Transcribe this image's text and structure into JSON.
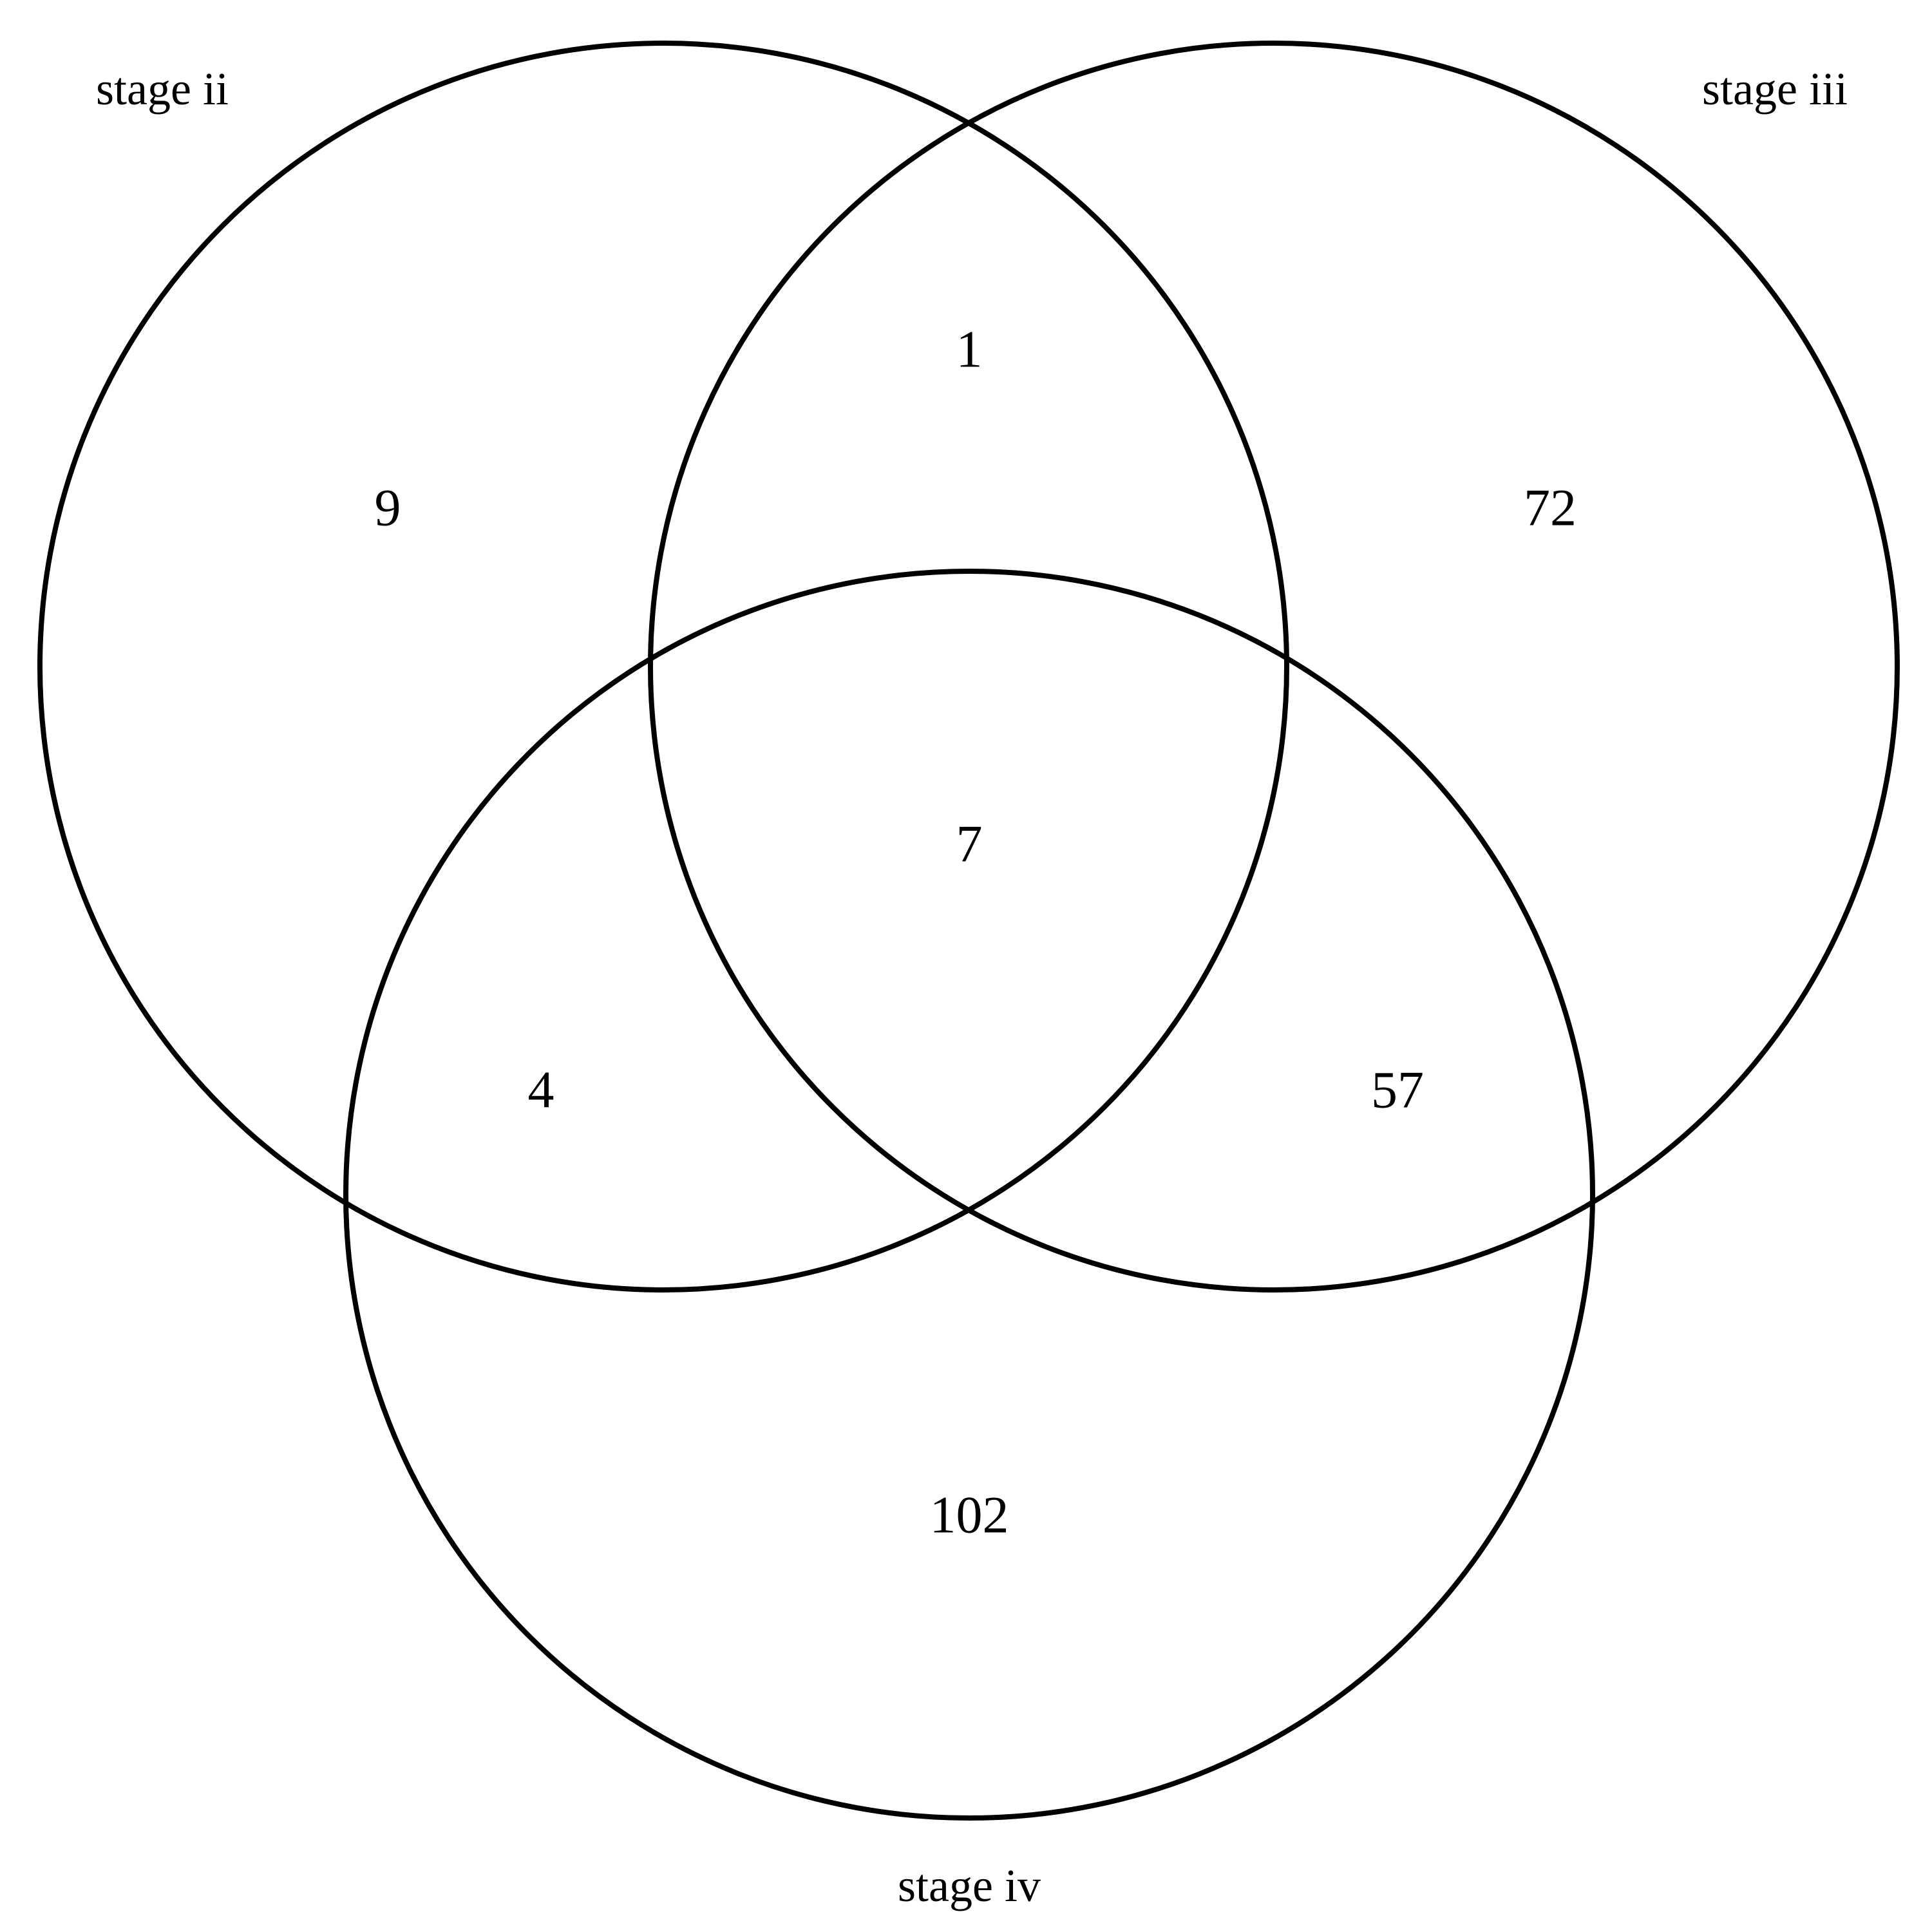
{
  "sets": [
    {
      "id": "A",
      "label": "stage ii"
    },
    {
      "id": "B",
      "label": "stage iii"
    },
    {
      "id": "C",
      "label": "stage iv"
    }
  ],
  "regions": {
    "A_only": "9",
    "B_only": "72",
    "C_only": "102",
    "A_B": "1",
    "A_C": "4",
    "B_C": "57",
    "A_B_C": "7"
  },
  "colors": {
    "stroke": "#000000",
    "background": "#ffffff",
    "text": "#000000"
  }
}
